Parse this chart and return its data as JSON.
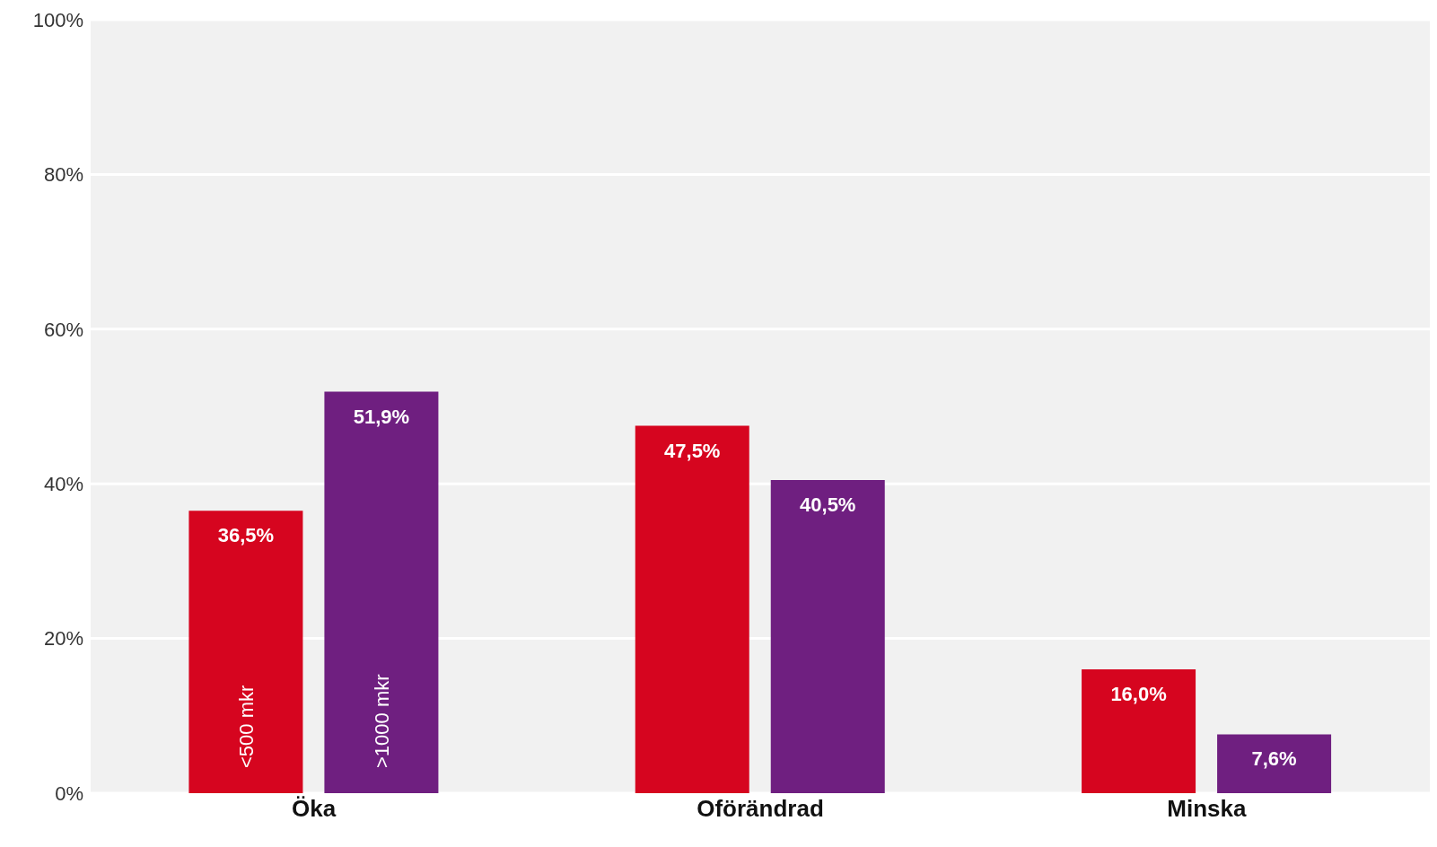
{
  "chart_data": {
    "type": "bar",
    "categories": [
      "Öka",
      "Oförändrad",
      "Minska"
    ],
    "series": [
      {
        "name": "<500 mkr",
        "color": "#d6051f",
        "values": [
          36.5,
          47.5,
          16.0
        ],
        "value_labels": [
          "36,5%",
          "47,5%",
          "16,0%"
        ]
      },
      {
        "name": ">1000 mkr",
        "color": "#6f1f80",
        "values": [
          51.9,
          40.5,
          7.6
        ],
        "value_labels": [
          "51,9%",
          "40,5%",
          "7,6%"
        ]
      }
    ],
    "ylim": [
      0,
      100
    ],
    "yticks": [
      {
        "value": 0,
        "label": "0%"
      },
      {
        "value": 20,
        "label": "20%"
      },
      {
        "value": 40,
        "label": "40%"
      },
      {
        "value": 60,
        "label": "60%"
      },
      {
        "value": 80,
        "label": "80%"
      },
      {
        "value": 100,
        "label": "100%"
      }
    ],
    "grid": "y",
    "legend": false
  }
}
